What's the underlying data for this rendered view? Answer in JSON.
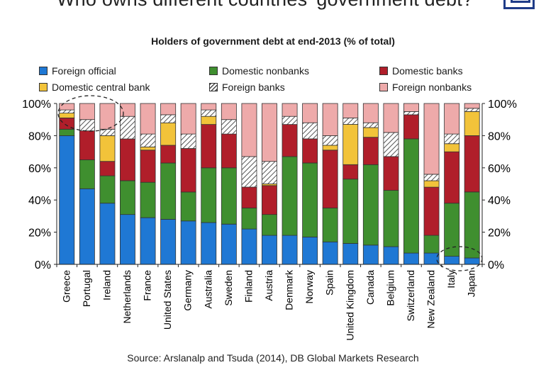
{
  "headline": "Who owns different countries' government debt?",
  "source": "Source: Arslanalp and Tsuda (2014), DB Global Markets Research",
  "colors": {
    "foreign_official": "#1f78d4",
    "domestic_nonbanks": "#3f8f2f",
    "domestic_banks": "#b01e2a",
    "domestic_central_bank": "#f2c33a",
    "foreign_banks": "hatch",
    "foreign_nonbanks": "#eeaaaa"
  },
  "chart_data": {
    "type": "bar",
    "stacked": true,
    "title": "Holders of government debt at end-2013 (% of total)",
    "xlabel": "",
    "ylabel": "",
    "ylim": [
      0,
      100
    ],
    "yticks": [
      "0%",
      "20%",
      "40%",
      "60%",
      "80%",
      "100%"
    ],
    "grid": false,
    "legend_position": "top",
    "categories": [
      "Greece",
      "Portugal",
      "Ireland",
      "Netherlands",
      "France",
      "United States",
      "Germany",
      "Australia",
      "Sweden",
      "Finland",
      "Austria",
      "Denmark",
      "Norway",
      "Spain",
      "United Kingdom",
      "Canada",
      "Belgium",
      "Switzerland",
      "New Zealand",
      "Italy",
      "Japan"
    ],
    "series": [
      {
        "name": "Foreign official",
        "key": "foreign_official",
        "values": [
          80,
          47,
          38,
          31,
          29,
          28,
          27,
          26,
          25,
          22,
          18,
          18,
          17,
          14,
          13,
          12,
          11,
          7,
          7,
          5,
          4
        ]
      },
      {
        "name": "Domestic nonbanks",
        "key": "domestic_nonbanks",
        "values": [
          4,
          18,
          17,
          21,
          22,
          35,
          18,
          34,
          35,
          13,
          13,
          49,
          46,
          21,
          40,
          50,
          35,
          71,
          11,
          33,
          41
        ]
      },
      {
        "name": "Domestic banks",
        "key": "domestic_banks",
        "values": [
          7,
          18,
          9,
          26,
          20,
          11,
          27,
          27,
          21,
          13,
          18,
          20,
          15,
          36,
          9,
          17,
          21,
          15,
          30,
          32,
          35
        ]
      },
      {
        "name": "Domestic central bank",
        "key": "domestic_central_bank",
        "values": [
          3,
          0,
          16,
          0,
          2,
          14,
          0,
          5,
          0,
          0,
          1,
          0,
          0,
          3,
          25,
          6,
          0,
          0,
          4,
          5,
          15
        ]
      },
      {
        "name": "Foreign banks",
        "key": "foreign_banks",
        "values": [
          2,
          7,
          4,
          14,
          8,
          5,
          9,
          4,
          9,
          19,
          14,
          5,
          10,
          6,
          4,
          3,
          15,
          2,
          4,
          6,
          2
        ]
      },
      {
        "name": "Foreign nonbanks",
        "key": "foreign_nonbanks",
        "values": [
          4,
          10,
          16,
          8,
          19,
          7,
          19,
          4,
          10,
          33,
          36,
          8,
          12,
          20,
          9,
          12,
          18,
          5,
          44,
          19,
          3
        ]
      }
    ],
    "annotations": [
      "dashed ellipse around Greece/Portugal top segments",
      "dashed ellipse around Italy/Japan bottom"
    ]
  }
}
